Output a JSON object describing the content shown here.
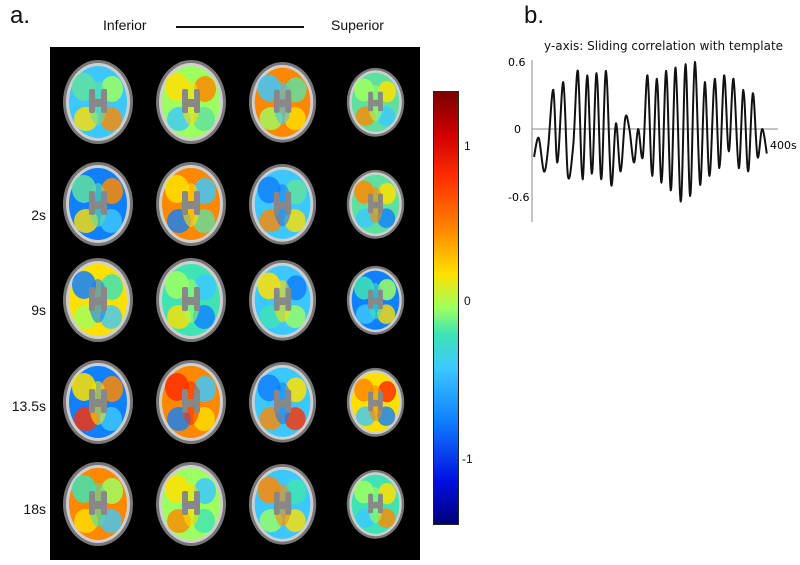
{
  "panel_a": {
    "label": "a.",
    "axis_left": "Inferior",
    "axis_right": "Superior",
    "row_labels": [
      "",
      "2s",
      "9s",
      "13.5s",
      "18s"
    ],
    "colorbar": {
      "ticks": [
        "1",
        "0",
        "-1"
      ],
      "range": [
        -1.25,
        1.25
      ]
    }
  },
  "panel_b": {
    "label": "b.",
    "title": "y-axis: Sliding correlation with template",
    "y_ticks": [
      "0.6",
      "0",
      "-0.6"
    ],
    "x_end_label": "400s"
  },
  "chart_data": {
    "type": "line",
    "title": "y-axis: Sliding correlation with template",
    "xlabel": "",
    "ylabel": "",
    "xlim": [
      0,
      400
    ],
    "ylim": [
      -0.8,
      0.7
    ],
    "x": [
      0,
      8,
      17,
      24,
      33,
      40,
      50,
      58,
      67,
      75,
      83,
      91,
      99,
      107,
      115,
      123,
      132,
      140,
      148,
      156,
      163,
      171,
      178,
      186,
      194,
      202,
      210,
      218,
      226,
      234,
      242,
      251,
      259,
      267,
      275,
      284,
      292,
      300,
      309,
      317,
      325,
      333,
      341,
      350,
      358,
      366,
      374,
      382,
      390,
      398
    ],
    "series": [
      {
        "values": [
          -0.25,
          -0.08,
          -0.38,
          -0.18,
          0.35,
          -0.3,
          0.42,
          -0.42,
          -0.15,
          0.52,
          -0.45,
          0.48,
          -0.4,
          0.5,
          -0.45,
          0.52,
          -0.5,
          0.05,
          -0.38,
          0.1,
          0.0,
          -0.3,
          0.0,
          -0.25,
          0.48,
          -0.42,
          0.45,
          -0.48,
          0.52,
          -0.55,
          0.55,
          -0.65,
          0.58,
          -0.6,
          0.6,
          -0.5,
          0.42,
          -0.42,
          0.45,
          -0.35,
          0.48,
          -0.2,
          0.45,
          -0.35,
          0.35,
          -0.38,
          0.32,
          -0.25,
          0.0,
          -0.22
        ]
      }
    ]
  }
}
